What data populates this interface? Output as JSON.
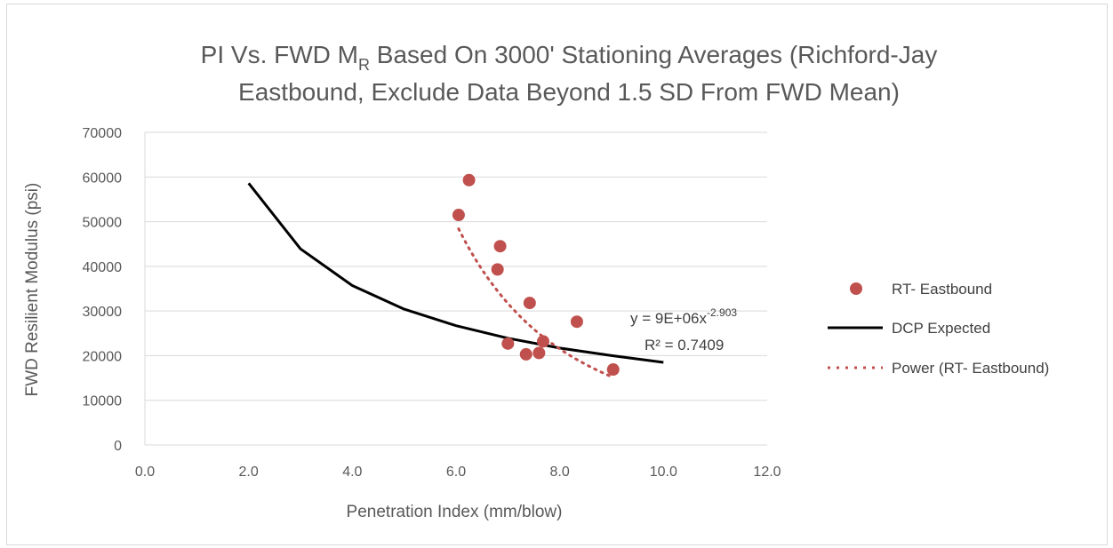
{
  "chart_data": {
    "type": "scatter",
    "title": {
      "line1_prefix": "PI Vs. FWD M",
      "line1_sub": "R",
      "line1_suffix": " Based On 3000' Stationing Averages (Richford-Jay",
      "line2": "Eastbound, Exclude Data Beyond 1.5 SD From FWD Mean)"
    },
    "xlabel": "Penetration Index (mm/blow)",
    "ylabel": "FWD  Resilient Modulus (psi)",
    "xlim": [
      0,
      12
    ],
    "ylim": [
      0,
      70000
    ],
    "x_ticks": [
      "0.0",
      "2.0",
      "4.0",
      "6.0",
      "8.0",
      "10.0",
      "12.0"
    ],
    "y_ticks": [
      "0",
      "10000",
      "20000",
      "30000",
      "40000",
      "50000",
      "60000",
      "70000"
    ],
    "grid": "horizontal",
    "legend_position": "right",
    "series": [
      {
        "name": "RT- Eastbound",
        "kind": "markers",
        "color": "#c0504d",
        "points": [
          {
            "x": 6.05,
            "y": 51500
          },
          {
            "x": 6.25,
            "y": 59300
          },
          {
            "x": 6.8,
            "y": 39300
          },
          {
            "x": 6.85,
            "y": 44500
          },
          {
            "x": 7.0,
            "y": 22700
          },
          {
            "x": 7.35,
            "y": 20300
          },
          {
            "x": 7.42,
            "y": 31800
          },
          {
            "x": 7.6,
            "y": 20600
          },
          {
            "x": 7.68,
            "y": 23200
          },
          {
            "x": 8.33,
            "y": 27600
          },
          {
            "x": 9.03,
            "y": 16900
          }
        ]
      },
      {
        "name": "DCP Expected",
        "kind": "line",
        "color": "#000000",
        "points": [
          {
            "x": 2.0,
            "y": 58600
          },
          {
            "x": 3.0,
            "y": 43900
          },
          {
            "x": 4.0,
            "y": 35700
          },
          {
            "x": 5.0,
            "y": 30400
          },
          {
            "x": 6.0,
            "y": 26700
          },
          {
            "x": 7.0,
            "y": 23900
          },
          {
            "x": 8.0,
            "y": 21700
          },
          {
            "x": 9.0,
            "y": 20000
          },
          {
            "x": 10.0,
            "y": 18500
          }
        ]
      },
      {
        "name": "Power (RT- Eastbound)",
        "kind": "trendline",
        "color": "#c0504d",
        "coefficient": 9000000,
        "exponent": -2.903,
        "x_range": [
          6.05,
          9.03
        ]
      }
    ],
    "trendline_label": {
      "equation_prefix": "y = 9E+06x",
      "equation_exponent": "-2.903",
      "r_squared": "R² = 0.7409"
    }
  }
}
